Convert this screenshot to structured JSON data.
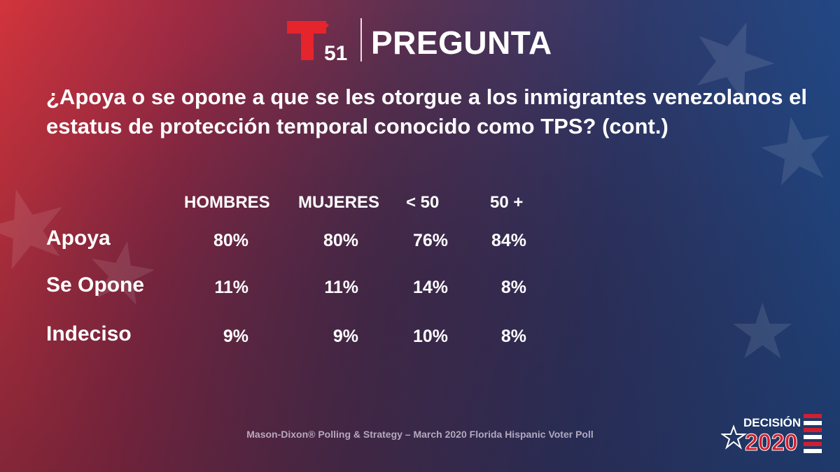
{
  "header": {
    "logo_number": "51",
    "label": "PREGUNTA"
  },
  "question": "¿Apoya o se opone a que se les otorgue a los inmigrantes venezolanos el estatus de protección temporal conocido como TPS?  (cont.)",
  "chart_data": {
    "type": "table",
    "columns": [
      "HOMBRES",
      "MUJERES",
      "< 50",
      "50 +"
    ],
    "rows": [
      {
        "label": "Apoya",
        "values": [
          "80%",
          "80%",
          "76%",
          "84%"
        ]
      },
      {
        "label": "Se Opone",
        "values": [
          "11%",
          "11%",
          "14%",
          "8%"
        ]
      },
      {
        "label": "Indeciso",
        "values": [
          "9%",
          "9%",
          "10%",
          "8%"
        ]
      }
    ]
  },
  "source": "Mason-Dixon® Polling & Strategy – March 2020 Florida Hispanic Voter Poll",
  "badge": {
    "word": "DECISIÓN",
    "year": "2020"
  },
  "colors": {
    "logo_red": "#e5242b",
    "white": "#ffffff"
  }
}
